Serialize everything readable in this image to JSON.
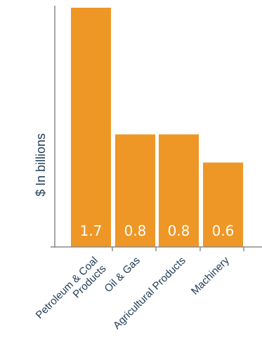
{
  "chart_data": {
    "type": "bar",
    "categories": [
      "Petroleum & Coal\nProducts",
      "Oil & Gas",
      "Agricultural Products",
      "Machinery"
    ],
    "values": [
      1.7,
      0.8,
      0.8,
      0.6
    ],
    "value_labels": [
      "1.7",
      "0.8",
      "0.8",
      "0.6"
    ],
    "title": "",
    "xlabel": "",
    "ylabel": "$ In billions",
    "ylim": [
      0,
      1.7
    ],
    "grid": false,
    "colors": {
      "bar": "#ee9726",
      "axis": "#8a8a8a",
      "text": "#1f3b57",
      "bar_label": "#ffffff"
    }
  }
}
